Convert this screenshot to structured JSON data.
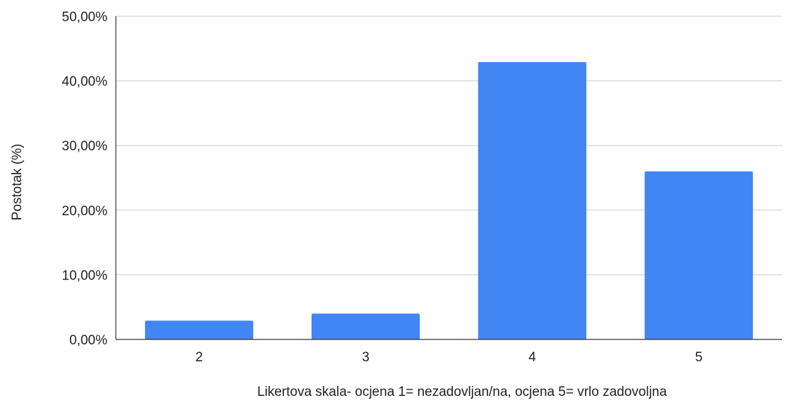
{
  "chart_data": {
    "type": "bar",
    "title": "",
    "xlabel": "Likertova skala- ocjena 1= nezadovljan/na, ocjena 5= vrlo zadovoljna",
    "ylabel": "Postotak (%)",
    "categories": [
      "2",
      "3",
      "4",
      "5"
    ],
    "values": [
      2.9,
      4.0,
      42.9,
      26.0
    ],
    "ylim": [
      0,
      50
    ],
    "yticks": [
      0,
      10,
      20,
      30,
      40,
      50
    ],
    "ytick_labels": [
      "0,00%",
      "10,00%",
      "20,00%",
      "30,00%",
      "40,00%",
      "50,00%"
    ],
    "bar_color": "#4285f4",
    "grid": true,
    "legend": "none"
  }
}
